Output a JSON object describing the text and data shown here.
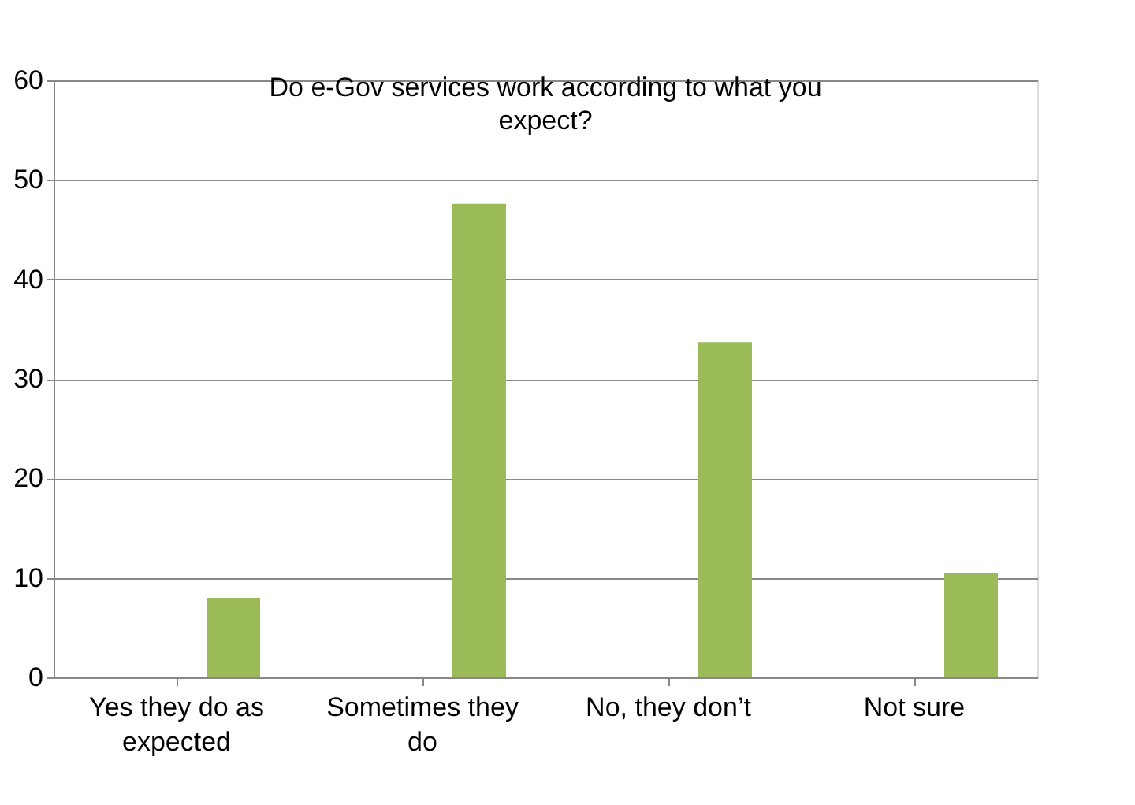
{
  "chart_data": {
    "type": "bar",
    "title": "Do e-Gov services work according to what you expect?",
    "categories": [
      "Yes they do as expected",
      "Sometimes they do",
      "No, they don’t",
      "Not sure"
    ],
    "values": [
      8,
      47.6,
      33.7,
      10.5
    ],
    "color": "#9bbb59",
    "ylim": [
      0,
      60
    ],
    "yticks": [
      0,
      10,
      20,
      30,
      40,
      50,
      60
    ],
    "grid": "y"
  }
}
